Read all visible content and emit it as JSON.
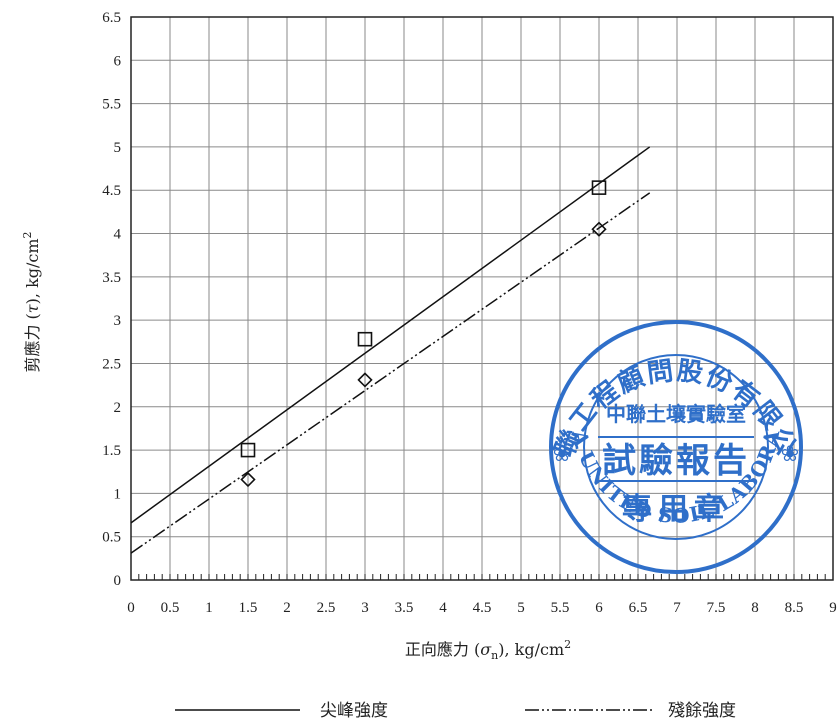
{
  "chart_data": {
    "type": "scatter",
    "x_ticks": [
      "0",
      "0.5",
      "1",
      "1.5",
      "2",
      "2.5",
      "3",
      "3.5",
      "4",
      "4.5",
      "5",
      "5.5",
      "6",
      "6.5",
      "7",
      "7.5",
      "8",
      "8.5",
      "9"
    ],
    "y_ticks": [
      "0",
      "0.5",
      "1",
      "1.5",
      "2",
      "2.5",
      "3",
      "3.5",
      "4",
      "4.5",
      "5",
      "5.5",
      "6",
      "6.5"
    ],
    "xlim": [
      0,
      9
    ],
    "ylim": [
      0,
      6.5
    ],
    "grid": true,
    "xlabel_main": "正向應力 (",
    "xlabel_sigma": "σ",
    "xlabel_sub": "n",
    "xlabel_unit": "), kg/cm",
    "xlabel_sup": "2",
    "ylabel_main": "剪應力 (",
    "ylabel_tau": "τ",
    "ylabel_unit": "), kg/cm",
    "ylabel_sup": "2",
    "series": [
      {
        "name": "尖峰強度",
        "marker": "square",
        "line_style": "solid",
        "color": "#111111",
        "points": [
          [
            1.5,
            1.5
          ],
          [
            3.0,
            2.78
          ],
          [
            6.0,
            4.53
          ]
        ],
        "fit_line": [
          [
            0,
            0.66
          ],
          [
            6.65,
            5.0
          ]
        ]
      },
      {
        "name": "殘餘強度",
        "marker": "diamond",
        "line_style": "dash-dot-dot",
        "color": "#111111",
        "points": [
          [
            1.5,
            1.16
          ],
          [
            3.0,
            2.31
          ],
          [
            6.0,
            4.05
          ]
        ],
        "fit_line": [
          [
            0,
            0.31
          ],
          [
            6.65,
            4.47
          ]
        ]
      }
    ],
    "legend_placement": "bottom"
  },
  "stamp": {
    "outer_top": "中聯工程顧問股份有限公司",
    "outer_bottom": "CHINA UNITED SOIL LABORATORY",
    "line1": "中聯土壤實驗室",
    "line2": "試驗報告",
    "line3": "專用章",
    "color": "#2f6fc9"
  }
}
